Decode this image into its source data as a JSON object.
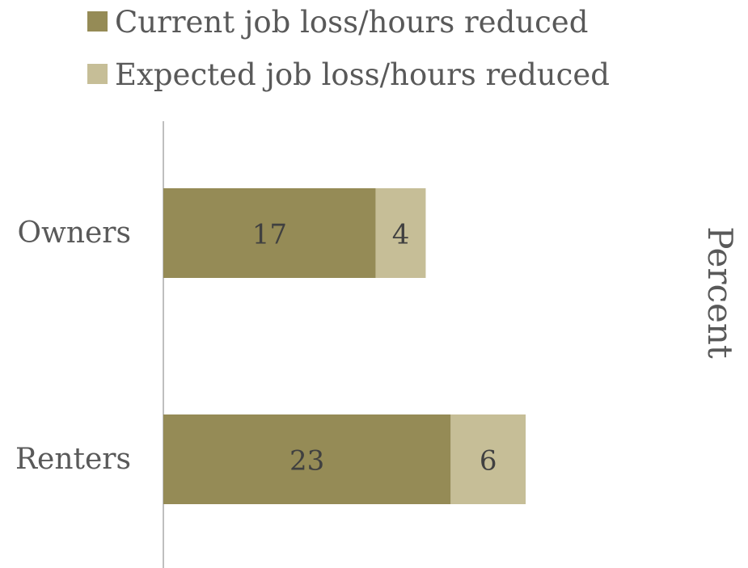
{
  "chart_data": {
    "type": "bar",
    "orientation": "horizontal",
    "stacked": true,
    "categories": [
      "Owners",
      "Renters"
    ],
    "series": [
      {
        "name": "Current job loss/hours reduced",
        "values": [
          17,
          23
        ],
        "color": "#958b56"
      },
      {
        "name": "Expected job loss/hours reduced",
        "values": [
          4,
          6
        ],
        "color": "#c6be97"
      }
    ],
    "title": "",
    "xlabel": "Percent",
    "ylabel": "",
    "xlim": [
      0,
      46
    ],
    "grid": false,
    "legend": "top-left",
    "data_labels": true
  }
}
